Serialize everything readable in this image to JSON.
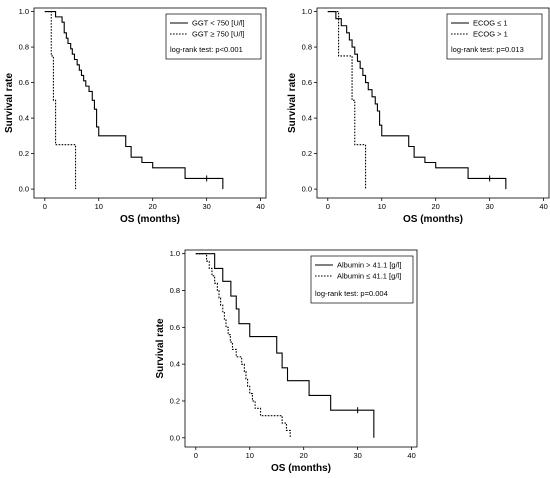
{
  "chart_data": [
    {
      "type": "line",
      "subtype": "kaplan-meier",
      "xlabel": "OS (months)",
      "ylabel": "Survival rate",
      "xlim": [
        -2,
        41
      ],
      "ylim": [
        -0.05,
        1.02
      ],
      "xticks": [
        0,
        10,
        20,
        30,
        40
      ],
      "yticks": [
        "0.0",
        "0.2",
        "0.4",
        "0.6",
        "0.8",
        "1.0"
      ],
      "grid": false,
      "legend_position": "top-right",
      "annotation": "log-rank test: p<0.001",
      "series": [
        {
          "name": "GGT < 750 [U/l]",
          "style": "solid",
          "steps": [
            [
              0,
              1.0
            ],
            [
              2.0,
              0.97
            ],
            [
              3.2,
              0.94
            ],
            [
              3.6,
              0.88
            ],
            [
              4.0,
              0.85
            ],
            [
              4.3,
              0.82
            ],
            [
              4.8,
              0.79
            ],
            [
              5.1,
              0.76
            ],
            [
              5.5,
              0.73
            ],
            [
              6.0,
              0.7
            ],
            [
              6.4,
              0.67
            ],
            [
              6.8,
              0.64
            ],
            [
              7.2,
              0.61
            ],
            [
              7.6,
              0.58
            ],
            [
              8.2,
              0.55
            ],
            [
              8.8,
              0.5
            ],
            [
              9.2,
              0.45
            ],
            [
              9.6,
              0.35
            ],
            [
              10.0,
              0.3
            ],
            [
              15.0,
              0.24
            ],
            [
              16.0,
              0.18
            ],
            [
              18.0,
              0.15
            ],
            [
              20.0,
              0.12
            ],
            [
              26.0,
              0.06
            ],
            [
              33.0,
              0.0
            ]
          ],
          "censored": [
            [
              30.0,
              0.06
            ]
          ]
        },
        {
          "name": "GGT ≥ 750 [U/l]",
          "style": "dotted",
          "steps": [
            [
              0,
              1.0
            ],
            [
              1.2,
              0.75
            ],
            [
              1.6,
              0.5
            ],
            [
              2.0,
              0.25
            ],
            [
              5.7,
              0.0
            ]
          ],
          "censored": []
        }
      ]
    },
    {
      "type": "line",
      "subtype": "kaplan-meier",
      "xlabel": "OS (months)",
      "ylabel": "Survival rate",
      "xlim": [
        -2,
        41
      ],
      "ylim": [
        -0.05,
        1.02
      ],
      "xticks": [
        0,
        10,
        20,
        30,
        40
      ],
      "yticks": [
        "0.0",
        "0.2",
        "0.4",
        "0.6",
        "0.8",
        "1.0"
      ],
      "grid": false,
      "legend_position": "top-right",
      "annotation": "log-rank test: p=0.013",
      "series": [
        {
          "name": "ECOG ≤ 1",
          "style": "solid",
          "steps": [
            [
              0,
              1.0
            ],
            [
              1.5,
              0.96
            ],
            [
              2.5,
              0.92
            ],
            [
              3.5,
              0.88
            ],
            [
              4.0,
              0.84
            ],
            [
              4.5,
              0.8
            ],
            [
              5.0,
              0.76
            ],
            [
              5.5,
              0.72
            ],
            [
              6.0,
              0.68
            ],
            [
              6.5,
              0.64
            ],
            [
              7.0,
              0.6
            ],
            [
              7.5,
              0.56
            ],
            [
              8.2,
              0.52
            ],
            [
              8.8,
              0.48
            ],
            [
              9.2,
              0.44
            ],
            [
              9.6,
              0.36
            ],
            [
              10.0,
              0.3
            ],
            [
              15.0,
              0.24
            ],
            [
              16.0,
              0.18
            ],
            [
              18.0,
              0.15
            ],
            [
              20.0,
              0.12
            ],
            [
              26.0,
              0.06
            ],
            [
              33.0,
              0.0
            ]
          ],
          "censored": [
            [
              30.0,
              0.06
            ]
          ]
        },
        {
          "name": "ECOG > 1",
          "style": "dotted",
          "steps": [
            [
              0,
              1.0
            ],
            [
              2.0,
              0.75
            ],
            [
              4.5,
              0.5
            ],
            [
              5.0,
              0.25
            ],
            [
              7.0,
              0.0
            ]
          ],
          "censored": []
        }
      ]
    },
    {
      "type": "line",
      "subtype": "kaplan-meier",
      "xlabel": "OS (months)",
      "ylabel": "Survival rate",
      "xlim": [
        -2,
        41
      ],
      "ylim": [
        -0.05,
        1.02
      ],
      "xticks": [
        0,
        10,
        20,
        30,
        40
      ],
      "yticks": [
        "0.0",
        "0.2",
        "0.4",
        "0.6",
        "0.8",
        "1.0"
      ],
      "grid": false,
      "legend_position": "top-right",
      "annotation": "log-rank test: p=0.004",
      "series": [
        {
          "name": "Albumin > 41.1 [g/l]",
          "style": "solid",
          "steps": [
            [
              0,
              1.0
            ],
            [
              3.5,
              0.92
            ],
            [
              5.0,
              0.85
            ],
            [
              6.5,
              0.77
            ],
            [
              7.5,
              0.7
            ],
            [
              8.0,
              0.62
            ],
            [
              10.0,
              0.55
            ],
            [
              15.0,
              0.46
            ],
            [
              16.0,
              0.38
            ],
            [
              17.0,
              0.31
            ],
            [
              21.0,
              0.23
            ],
            [
              25.0,
              0.15
            ],
            [
              33.0,
              0.0
            ]
          ],
          "censored": [
            [
              30.0,
              0.15
            ]
          ]
        },
        {
          "name": "Albumin ≤ 41.1 [g/l]",
          "style": "dotted",
          "steps": [
            [
              0,
              1.0
            ],
            [
              2.0,
              0.96
            ],
            [
              2.5,
              0.92
            ],
            [
              3.0,
              0.88
            ],
            [
              3.5,
              0.84
            ],
            [
              4.0,
              0.8
            ],
            [
              4.3,
              0.76
            ],
            [
              4.6,
              0.72
            ],
            [
              5.0,
              0.68
            ],
            [
              5.3,
              0.64
            ],
            [
              5.6,
              0.6
            ],
            [
              6.0,
              0.56
            ],
            [
              6.4,
              0.52
            ],
            [
              6.8,
              0.48
            ],
            [
              7.5,
              0.44
            ],
            [
              8.5,
              0.4
            ],
            [
              9.0,
              0.36
            ],
            [
              9.3,
              0.32
            ],
            [
              9.6,
              0.28
            ],
            [
              10.0,
              0.24
            ],
            [
              10.5,
              0.2
            ],
            [
              11.0,
              0.16
            ],
            [
              12.0,
              0.12
            ],
            [
              16.0,
              0.08
            ],
            [
              16.8,
              0.04
            ],
            [
              17.5,
              0.0
            ]
          ],
          "censored": []
        }
      ]
    }
  ]
}
